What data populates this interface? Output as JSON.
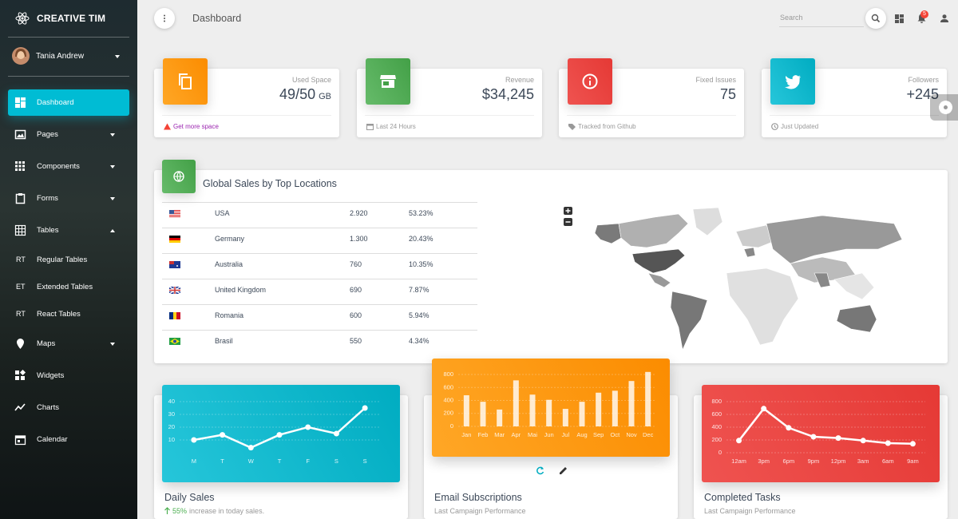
{
  "sidebar": {
    "brand": "CREATIVE TIM",
    "user": "Tania Andrew",
    "menu": [
      {
        "label": "Dashboard",
        "active": true
      },
      {
        "label": "Pages",
        "caret": "down"
      },
      {
        "label": "Components",
        "caret": "down"
      },
      {
        "label": "Forms",
        "caret": "down"
      },
      {
        "label": "Tables",
        "caret": "up"
      },
      {
        "abbr": "RT",
        "label": "Regular Tables"
      },
      {
        "abbr": "ET",
        "label": "Extended Tables"
      },
      {
        "abbr": "RT",
        "label": "React Tables"
      },
      {
        "label": "Maps",
        "caret": "down"
      },
      {
        "label": "Widgets"
      },
      {
        "label": "Charts"
      },
      {
        "label": "Calendar"
      }
    ]
  },
  "header": {
    "title": "Dashboard",
    "search_placeholder": "Search",
    "notifications": "5"
  },
  "stats": [
    {
      "title": "Used Space",
      "value": "49/50",
      "unit": "GB",
      "footer": "Get more space"
    },
    {
      "title": "Revenue",
      "value": "$34,245",
      "footer": "Last 24 Hours"
    },
    {
      "title": "Fixed Issues",
      "value": "75",
      "footer": "Tracked from Github"
    },
    {
      "title": "Followers",
      "value": "+245",
      "footer": "Just Updated"
    }
  ],
  "sales_table": {
    "title": "Global Sales by Top Locations",
    "rows": [
      [
        "USA",
        "2.920",
        "53.23%"
      ],
      [
        "Germany",
        "1.300",
        "20.43%"
      ],
      [
        "Australia",
        "760",
        "10.35%"
      ],
      [
        "United Kingdom",
        "690",
        "7.87%"
      ],
      [
        "Romania",
        "600",
        "5.94%"
      ],
      [
        "Brasil",
        "550",
        "4.34%"
      ]
    ]
  },
  "chart_data": [
    {
      "type": "line",
      "title": "Daily Sales",
      "subtitle_highlight": "55%",
      "subtitle": "increase in today sales.",
      "categories": [
        "M",
        "T",
        "W",
        "T",
        "F",
        "S",
        "S"
      ],
      "values": [
        10,
        14,
        4,
        14,
        20,
        15,
        35
      ],
      "ylim": [
        0,
        40
      ],
      "yticks": [
        10,
        20,
        30,
        40
      ],
      "color": "#ffffff",
      "grid": true
    },
    {
      "type": "bar",
      "title": "Email Subscriptions",
      "subtitle": "Last Campaign Performance",
      "categories": [
        "Jan",
        "Feb",
        "Mar",
        "Apr",
        "Mai",
        "Jun",
        "Jul",
        "Aug",
        "Sep",
        "Oct",
        "Nov",
        "Dec"
      ],
      "values": [
        480,
        380,
        260,
        710,
        490,
        410,
        270,
        380,
        520,
        550,
        700,
        840
      ],
      "ylim": [
        0,
        850
      ],
      "yticks": [
        0,
        200,
        400,
        600,
        800
      ],
      "color": "#ffffff",
      "grid": true
    },
    {
      "type": "line",
      "title": "Completed Tasks",
      "subtitle": "Last Campaign Performance",
      "categories": [
        "12am",
        "3pm",
        "6pm",
        "9pm",
        "12pm",
        "3am",
        "6am",
        "9am"
      ],
      "values": [
        190,
        690,
        390,
        250,
        230,
        190,
        150,
        140
      ],
      "ylim": [
        0,
        800
      ],
      "yticks": [
        0,
        200,
        400,
        600,
        800
      ],
      "color": "#ffffff",
      "grid": true
    }
  ]
}
